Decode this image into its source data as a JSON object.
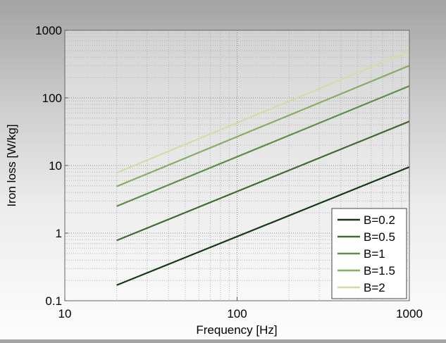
{
  "chart_data": {
    "type": "line",
    "title": "",
    "xlabel": "Frequency [Hz]",
    "ylabel": "Iron loss [W/kg]",
    "x_scale": "log",
    "y_scale": "log",
    "xlim": [
      10,
      1000
    ],
    "ylim": [
      0.1,
      1000
    ],
    "x_ticks": [
      10,
      100,
      1000
    ],
    "x_tick_labels": [
      "10",
      "100",
      "1000"
    ],
    "y_ticks": [
      0.1,
      1,
      10,
      100,
      1000
    ],
    "y_tick_labels": [
      "0.1",
      "1",
      "10",
      "100",
      "1000"
    ],
    "grid": "major and minor, dotted",
    "legend_position": "bottom-right",
    "series": [
      {
        "name": "B=0.2",
        "color": "#143a14",
        "x": [
          20,
          1000
        ],
        "y": [
          0.17,
          9.5
        ]
      },
      {
        "name": "B=0.5",
        "color": "#3f6b33",
        "x": [
          20,
          1000
        ],
        "y": [
          0.78,
          45
        ]
      },
      {
        "name": "B=1",
        "color": "#5e8f48",
        "x": [
          20,
          1000
        ],
        "y": [
          2.5,
          150
        ]
      },
      {
        "name": "B=1.5",
        "color": "#87ad63",
        "x": [
          20,
          1000
        ],
        "y": [
          4.9,
          300
        ]
      },
      {
        "name": "B=2",
        "color": "#cce0a6",
        "x": [
          20,
          1000
        ],
        "y": [
          7.8,
          490
        ]
      }
    ]
  }
}
